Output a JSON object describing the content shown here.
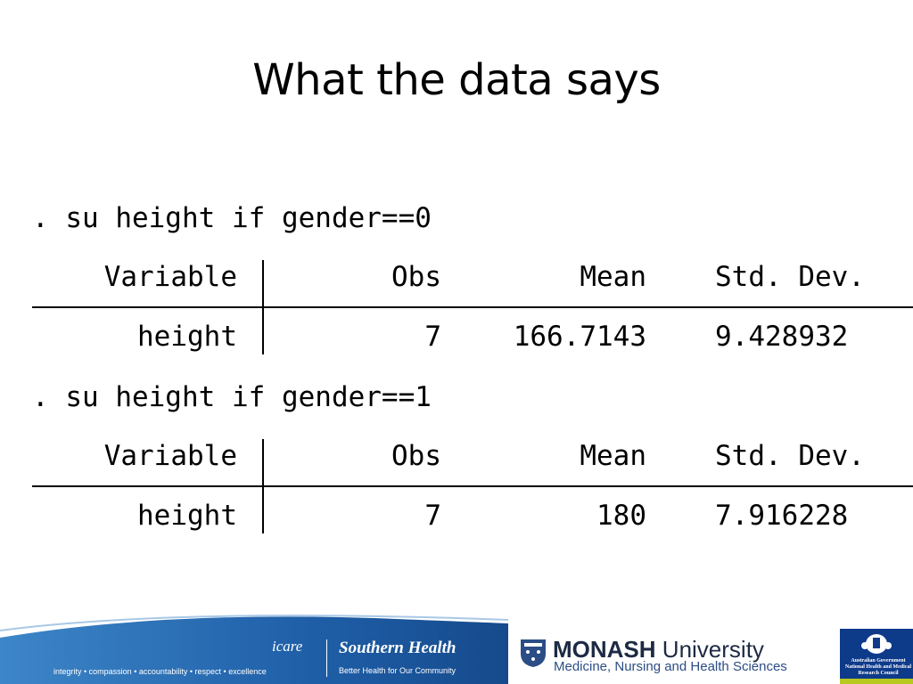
{
  "slide": {
    "title": "What the data says"
  },
  "blocks": [
    {
      "command": ". su height if gender==0",
      "header": {
        "variable": "Variable",
        "obs": "Obs",
        "mean": "Mean",
        "sd": "Std. Dev."
      },
      "row": {
        "variable": "height",
        "obs": "7",
        "mean": "166.7143",
        "sd": "9.428932"
      }
    },
    {
      "command": ". su height if gender==1",
      "header": {
        "variable": "Variable",
        "obs": "Obs",
        "mean": "Mean",
        "sd": "Std. Dev."
      },
      "row": {
        "variable": "height",
        "obs": "7",
        "mean": "180",
        "sd": "7.916228"
      }
    }
  ],
  "footer": {
    "values_line": "integrity • compassion • accountability • respect • excellence",
    "icare": "icare",
    "southern_health": "Southern Health",
    "southern_health_tagline": "Better Health for Our Community",
    "monash_name_bold": "MONASH",
    "monash_name_regular": " University",
    "monash_faculty": "Medicine, Nursing and Health Sciences",
    "gov_line1": "Australian Government",
    "gov_line2": "National Health and Medical Research Council",
    "colors": {
      "footer_blue": "#1f5fa8",
      "monash_navy": "#1d2a44",
      "gov_blue": "#0e3a8a",
      "nhmrc_green": "#b7c81e"
    }
  }
}
